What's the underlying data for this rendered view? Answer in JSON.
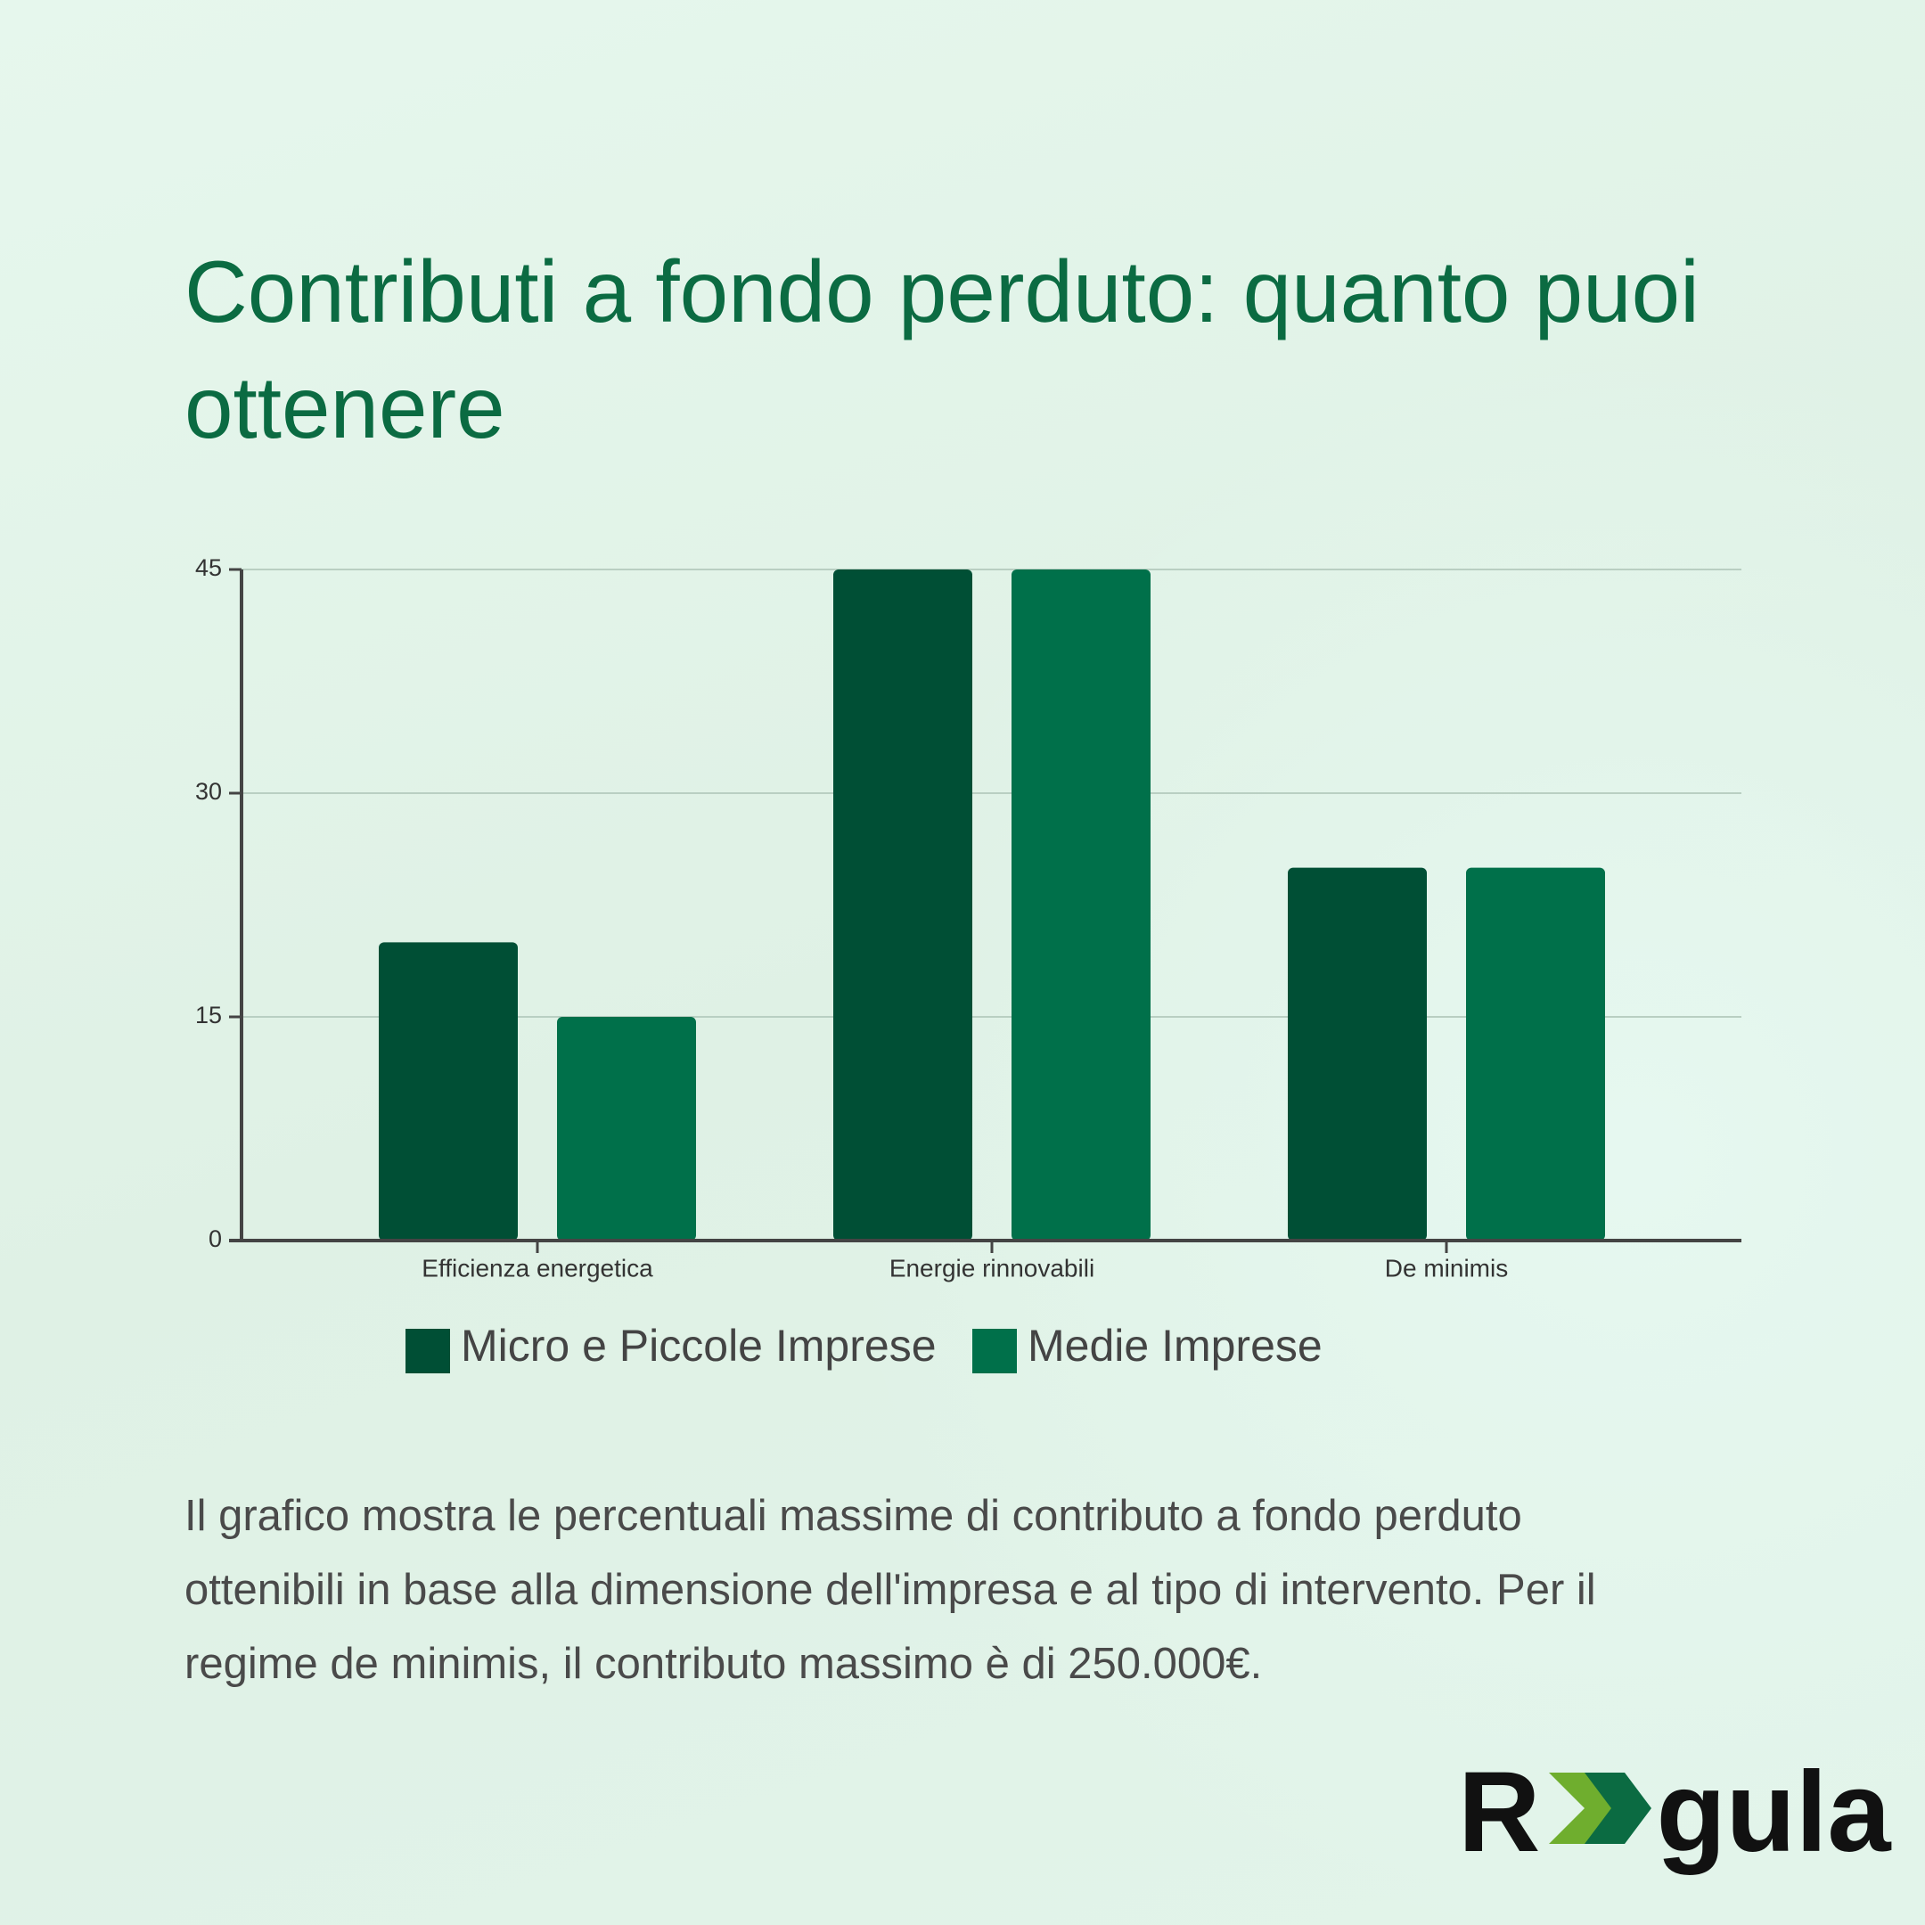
{
  "title": "Contributi a fondo perduto: quanto puoi ottenere",
  "chart_data": {
    "type": "bar",
    "categories": [
      "Efficienza energetica",
      "Energie rinnovabili",
      "De minimis"
    ],
    "series": [
      {
        "name": "Micro e Piccole Imprese",
        "color": "#004f35",
        "values": [
          20,
          45,
          25
        ]
      },
      {
        "name": "Medie Imprese",
        "color": "#00704a",
        "values": [
          15,
          45,
          25
        ]
      }
    ],
    "ylim": [
      0,
      45
    ],
    "yticks": [
      0,
      15,
      30,
      45
    ],
    "grid": true
  },
  "description": "Il grafico mostra le percentuali massime di contributo a fondo perduto ottenibili in base alla dimensione dell'impresa e al tipo di intervento. Per il regime de minimis, il contributo massimo è di 250.000€.",
  "logo": {
    "left": "R",
    "right": "gula"
  }
}
